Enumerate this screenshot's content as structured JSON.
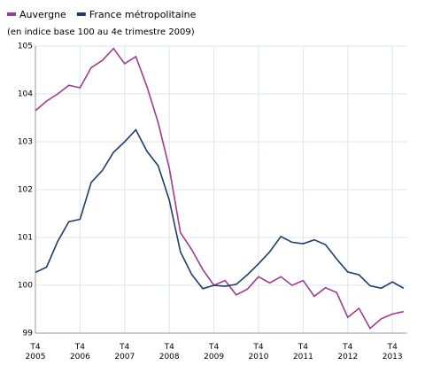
{
  "chart_data": {
    "type": "line",
    "subtitle": "(en indice base 100 au 4e trimestre 2009)",
    "categories": [
      "T4 2005",
      null,
      null,
      null,
      "T4 2006",
      null,
      null,
      null,
      "T4 2007",
      null,
      null,
      null,
      "T4 2008",
      null,
      null,
      null,
      "T4 2009",
      null,
      null,
      null,
      "T4 2010",
      null,
      null,
      null,
      "T4 2011",
      null,
      null,
      null,
      "T4 2012",
      null,
      null,
      null,
      "T4 2013",
      null
    ],
    "series": [
      {
        "name": "Auvergne",
        "color": "#9e3d8e",
        "values": [
          103.65,
          103.85,
          104.0,
          104.18,
          104.13,
          104.55,
          104.7,
          104.95,
          104.63,
          104.78,
          104.15,
          103.4,
          102.45,
          101.1,
          100.75,
          100.33,
          100.0,
          100.1,
          99.8,
          99.92,
          100.18,
          100.05,
          100.18,
          100.0,
          100.1,
          99.77,
          99.95,
          99.85,
          99.33,
          99.52,
          99.1,
          99.3,
          99.4,
          99.45
        ]
      },
      {
        "name": "France métropolitaine",
        "color": "#1f3d6b",
        "values": [
          100.27,
          100.38,
          100.92,
          101.33,
          101.38,
          102.15,
          102.4,
          102.78,
          103.0,
          103.25,
          102.8,
          102.5,
          101.78,
          100.7,
          100.23,
          99.93,
          100.0,
          99.98,
          100.02,
          100.22,
          100.45,
          100.7,
          101.02,
          100.9,
          100.87,
          100.95,
          100.85,
          100.55,
          100.28,
          100.22,
          99.99,
          99.94,
          100.07,
          99.94
        ]
      }
    ],
    "ylim": [
      99,
      105
    ],
    "yticks": [
      99,
      100,
      101,
      102,
      103,
      104,
      105
    ],
    "grid": true
  }
}
